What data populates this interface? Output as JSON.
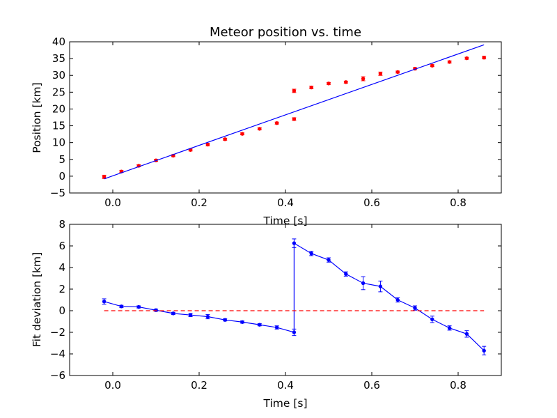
{
  "chart_data": [
    {
      "type": "scatter",
      "title": "Meteor position vs. time",
      "xlabel": "Time [s]",
      "ylabel": "Position [km]",
      "xlim": [
        -0.1,
        0.9
      ],
      "ylim": [
        -5,
        40
      ],
      "xticks": [
        0.0,
        0.2,
        0.4,
        0.6,
        0.8
      ],
      "xtick_labels": [
        "0.0",
        "0.2",
        "0.4",
        "0.6",
        "0.8"
      ],
      "yticks": [
        -5,
        0,
        5,
        10,
        15,
        20,
        25,
        30,
        35,
        40
      ],
      "ytick_labels": [
        "−5",
        "0",
        "5",
        "10",
        "15",
        "20",
        "25",
        "30",
        "35",
        "40"
      ],
      "grid": false,
      "series": [
        {
          "kind": "errorbar-points",
          "color": "#ff0000",
          "x": [
            -0.02,
            0.02,
            0.06,
            0.1,
            0.14,
            0.18,
            0.22,
            0.26,
            0.3,
            0.34,
            0.38,
            0.42,
            0.42,
            0.46,
            0.5,
            0.54,
            0.58,
            0.62,
            0.66,
            0.7,
            0.74,
            0.78,
            0.82,
            0.86
          ],
          "y": [
            -0.2,
            1.4,
            3.1,
            4.7,
            6.1,
            7.8,
            9.4,
            11.0,
            12.6,
            14.1,
            15.8,
            17.0,
            25.4,
            26.4,
            27.6,
            28.0,
            29.0,
            30.5,
            31.0,
            32.0,
            32.9,
            34.0,
            35.1,
            35.3
          ],
          "yerr": [
            0.5,
            0.3,
            0.3,
            0.3,
            0.3,
            0.3,
            0.4,
            0.3,
            0.3,
            0.3,
            0.3,
            0.4,
            0.5,
            0.4,
            0.3,
            0.3,
            0.6,
            0.5,
            0.3,
            0.3,
            0.3,
            0.3,
            0.3,
            0.4
          ]
        },
        {
          "kind": "fit-line",
          "color": "#0000ff",
          "x": [
            -0.02,
            0.86
          ],
          "y": [
            -0.8,
            39.1
          ]
        }
      ]
    },
    {
      "type": "line",
      "xlabel": "Time [s]",
      "ylabel": "Fit deviation [km]",
      "xlim": [
        -0.1,
        0.9
      ],
      "ylim": [
        -6,
        8
      ],
      "xticks": [
        0.0,
        0.2,
        0.4,
        0.6,
        0.8
      ],
      "xtick_labels": [
        "0.0",
        "0.2",
        "0.4",
        "0.6",
        "0.8"
      ],
      "yticks": [
        -6,
        -4,
        -2,
        0,
        2,
        4,
        6,
        8
      ],
      "ytick_labels": [
        "−6",
        "−4",
        "−2",
        "0",
        "2",
        "4",
        "6",
        "8"
      ],
      "grid": false,
      "series": [
        {
          "kind": "errorbar-line",
          "color": "#0000ff",
          "x": [
            -0.02,
            0.02,
            0.06,
            0.1,
            0.14,
            0.18,
            0.22,
            0.26,
            0.3,
            0.34,
            0.38,
            0.42,
            0.42,
            0.46,
            0.5,
            0.54,
            0.58,
            0.62,
            0.66,
            0.7,
            0.74,
            0.78,
            0.82,
            0.86
          ],
          "y": [
            0.85,
            0.4,
            0.35,
            0.05,
            -0.25,
            -0.4,
            -0.55,
            -0.85,
            -1.05,
            -1.3,
            -1.55,
            -2.0,
            6.25,
            5.3,
            4.7,
            3.4,
            2.55,
            2.25,
            1.0,
            0.25,
            -0.8,
            -1.6,
            -2.15,
            -3.7
          ],
          "yerr": [
            0.25,
            0.1,
            0.1,
            0.1,
            0.1,
            0.15,
            0.2,
            0.1,
            0.1,
            0.1,
            0.15,
            0.3,
            0.4,
            0.2,
            0.2,
            0.2,
            0.6,
            0.5,
            0.2,
            0.2,
            0.3,
            0.2,
            0.3,
            0.4
          ]
        },
        {
          "kind": "zero-line",
          "color": "#ff0000",
          "dash": "dashed",
          "x": [
            -0.02,
            0.86
          ],
          "y": [
            0,
            0
          ]
        }
      ]
    }
  ]
}
